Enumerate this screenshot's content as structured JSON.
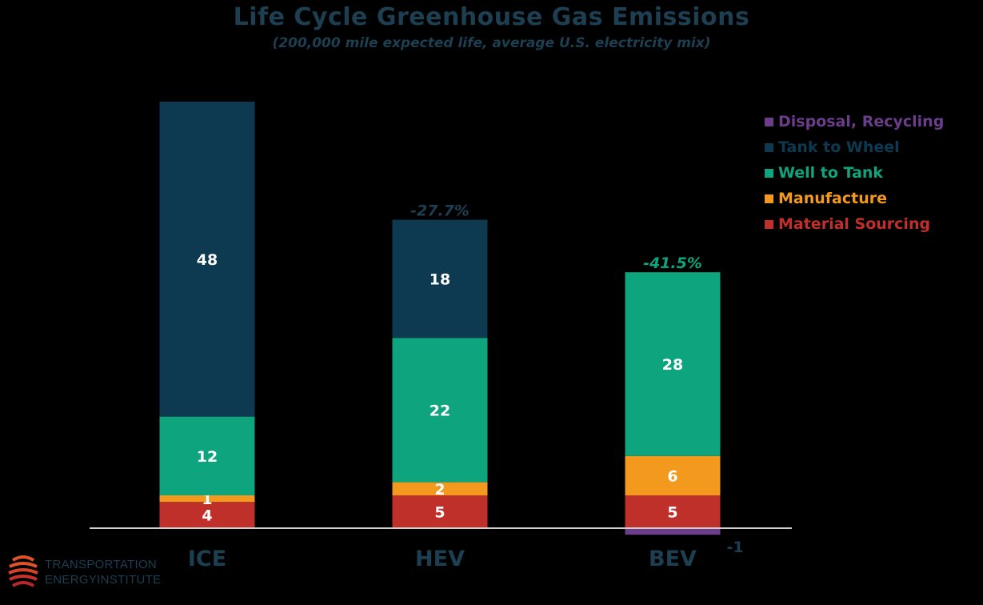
{
  "chart_data": {
    "type": "bar",
    "stacked": true,
    "title": "Life Cycle Greenhouse Gas Emissions",
    "subtitle": "(200,000 mile expected life, average U.S. electricity mix)",
    "categories": [
      "ICE",
      "HEV",
      "BEV"
    ],
    "series": [
      {
        "name": "Material Sourcing",
        "color": "#c0302b",
        "values": [
          4,
          5,
          5
        ]
      },
      {
        "name": "Manufacture",
        "color": "#f39a1e",
        "values": [
          1,
          2,
          6
        ]
      },
      {
        "name": "Well to Tank",
        "color": "#0da47e",
        "values": [
          12,
          22,
          28
        ]
      },
      {
        "name": "Tank to Wheel",
        "color": "#0d3a51",
        "values": [
          48,
          18,
          0
        ]
      },
      {
        "name": "Disposal, Recycling",
        "color": "#6b3d8a",
        "values": [
          0,
          0,
          -1
        ]
      }
    ],
    "data_labels": [
      {
        "category": "ICE",
        "series": "Material Sourcing",
        "text": "4"
      },
      {
        "category": "ICE",
        "series": "Manufacture",
        "text": "1"
      },
      {
        "category": "ICE",
        "series": "Well to Tank",
        "text": "12"
      },
      {
        "category": "ICE",
        "series": "Tank to Wheel",
        "text": "48"
      },
      {
        "category": "HEV",
        "series": "Material Sourcing",
        "text": "5"
      },
      {
        "category": "HEV",
        "series": "Manufacture",
        "text": "2"
      },
      {
        "category": "HEV",
        "series": "Well to Tank",
        "text": "22"
      },
      {
        "category": "HEV",
        "series": "Tank to Wheel",
        "text": "18"
      },
      {
        "category": "BEV",
        "series": "Material Sourcing",
        "text": "5"
      },
      {
        "category": "BEV",
        "series": "Manufacture",
        "text": "6"
      },
      {
        "category": "BEV",
        "series": "Well to Tank",
        "text": "28"
      },
      {
        "category": "BEV",
        "series": "Disposal, Recycling",
        "text": "-1"
      }
    ],
    "annotations": [
      {
        "category": "HEV",
        "text": "-27.7%",
        "color": "#1c3f52"
      },
      {
        "category": "BEV",
        "text": "-41.5%",
        "color": "#0da47e"
      }
    ],
    "legend_order": [
      "Disposal, Recycling",
      "Tank to Wheel",
      "Well to Tank",
      "Manufacture",
      "Material Sourcing"
    ],
    "legend_position": "top-right",
    "xlabel": "",
    "ylabel": "",
    "ylim": [
      -1,
      65
    ],
    "grid": false
  },
  "logo": {
    "line1": "TRANSPORTATION",
    "line2": "ENERGYINSTITUTE",
    "icon": "globe-stripes-icon"
  }
}
